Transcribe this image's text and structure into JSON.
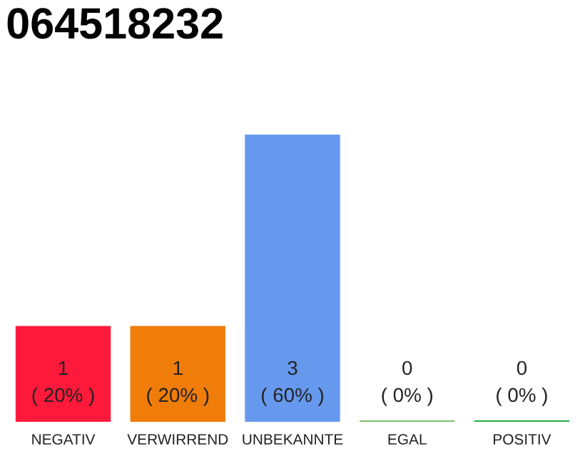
{
  "chart_data": {
    "type": "bar",
    "title": "064518232",
    "categories": [
      "NEGATIV",
      "VERWIRREND",
      "UNBEKANNTE",
      "EGAL",
      "POSITIV"
    ],
    "values": [
      1,
      1,
      3,
      0,
      0
    ],
    "colors": [
      "#ff1a3c",
      "#f07c0a",
      "#6699ee",
      "#77c466",
      "#22aa44"
    ],
    "value_labels": [
      "1\n( 20% )",
      "1\n( 20% )",
      "3\n( 60% )",
      "0\n( 0% )",
      "0\n( 0% )"
    ],
    "ylim": [
      0,
      3
    ],
    "grid": false,
    "legend": false
  }
}
